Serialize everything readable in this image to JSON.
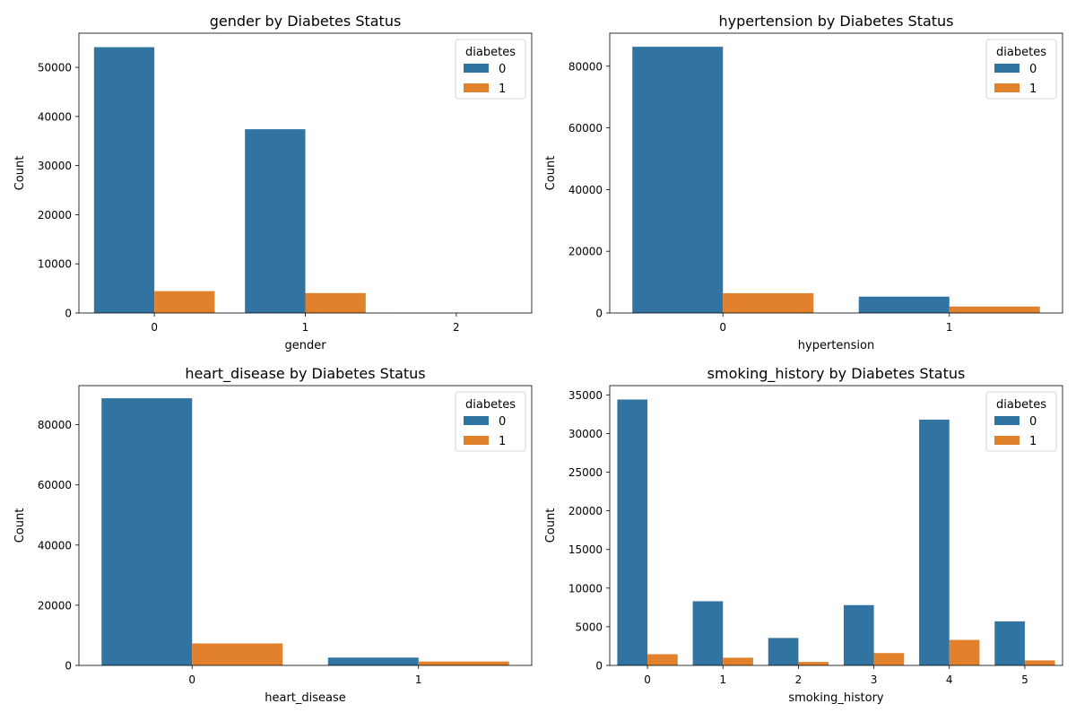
{
  "colors": {
    "series0": "#3274a1",
    "series1": "#e1812c"
  },
  "chart_data": [
    {
      "type": "bar",
      "title": "gender by Diabetes Status",
      "xlabel": "gender",
      "ylabel": "Count",
      "categories": [
        "0",
        "1",
        "2"
      ],
      "ylim": [
        0,
        56950
      ],
      "yticks": [
        0,
        10000,
        20000,
        30000,
        40000,
        50000
      ],
      "legend": {
        "title": "diabetes",
        "position": "upper-right",
        "labels": [
          "0",
          "1"
        ]
      },
      "series": [
        {
          "name": "0",
          "values": [
            54100,
            37400,
            18
          ]
        },
        {
          "name": "1",
          "values": [
            4450,
            4050,
            0
          ]
        }
      ]
    },
    {
      "type": "bar",
      "title": "hypertension by Diabetes Status",
      "xlabel": "hypertension",
      "ylabel": "Count",
      "categories": [
        "0",
        "1"
      ],
      "ylim": [
        0,
        90700
      ],
      "yticks": [
        0,
        20000,
        40000,
        60000,
        80000
      ],
      "legend": {
        "title": "diabetes",
        "position": "upper-right",
        "labels": [
          "0",
          "1"
        ]
      },
      "series": [
        {
          "name": "0",
          "values": [
            86300,
            5300
          ]
        },
        {
          "name": "1",
          "values": [
            6400,
            2100
          ]
        }
      ]
    },
    {
      "type": "bar",
      "title": "heart_disease by Diabetes Status",
      "xlabel": "heart_disease",
      "ylabel": "Count",
      "categories": [
        "0",
        "1"
      ],
      "ylim": [
        0,
        93000
      ],
      "yticks": [
        0,
        20000,
        40000,
        60000,
        80000
      ],
      "legend": {
        "title": "diabetes",
        "position": "upper-right",
        "labels": [
          "0",
          "1"
        ]
      },
      "series": [
        {
          "name": "0",
          "values": [
            88800,
            2600
          ]
        },
        {
          "name": "1",
          "values": [
            7300,
            1300
          ]
        }
      ]
    },
    {
      "type": "bar",
      "title": "smoking_history by Diabetes Status",
      "xlabel": "smoking_history",
      "ylabel": "Count",
      "categories": [
        "0",
        "1",
        "2",
        "3",
        "4",
        "5"
      ],
      "ylim": [
        0,
        36200
      ],
      "yticks": [
        0,
        5000,
        10000,
        15000,
        20000,
        25000,
        30000,
        35000
      ],
      "legend": {
        "title": "diabetes",
        "position": "upper-right",
        "labels": [
          "0",
          "1"
        ]
      },
      "series": [
        {
          "name": "0",
          "values": [
            34400,
            8300,
            3550,
            7800,
            31800,
            5700
          ]
        },
        {
          "name": "1",
          "values": [
            1450,
            1000,
            450,
            1600,
            3300,
            650
          ]
        }
      ]
    }
  ]
}
